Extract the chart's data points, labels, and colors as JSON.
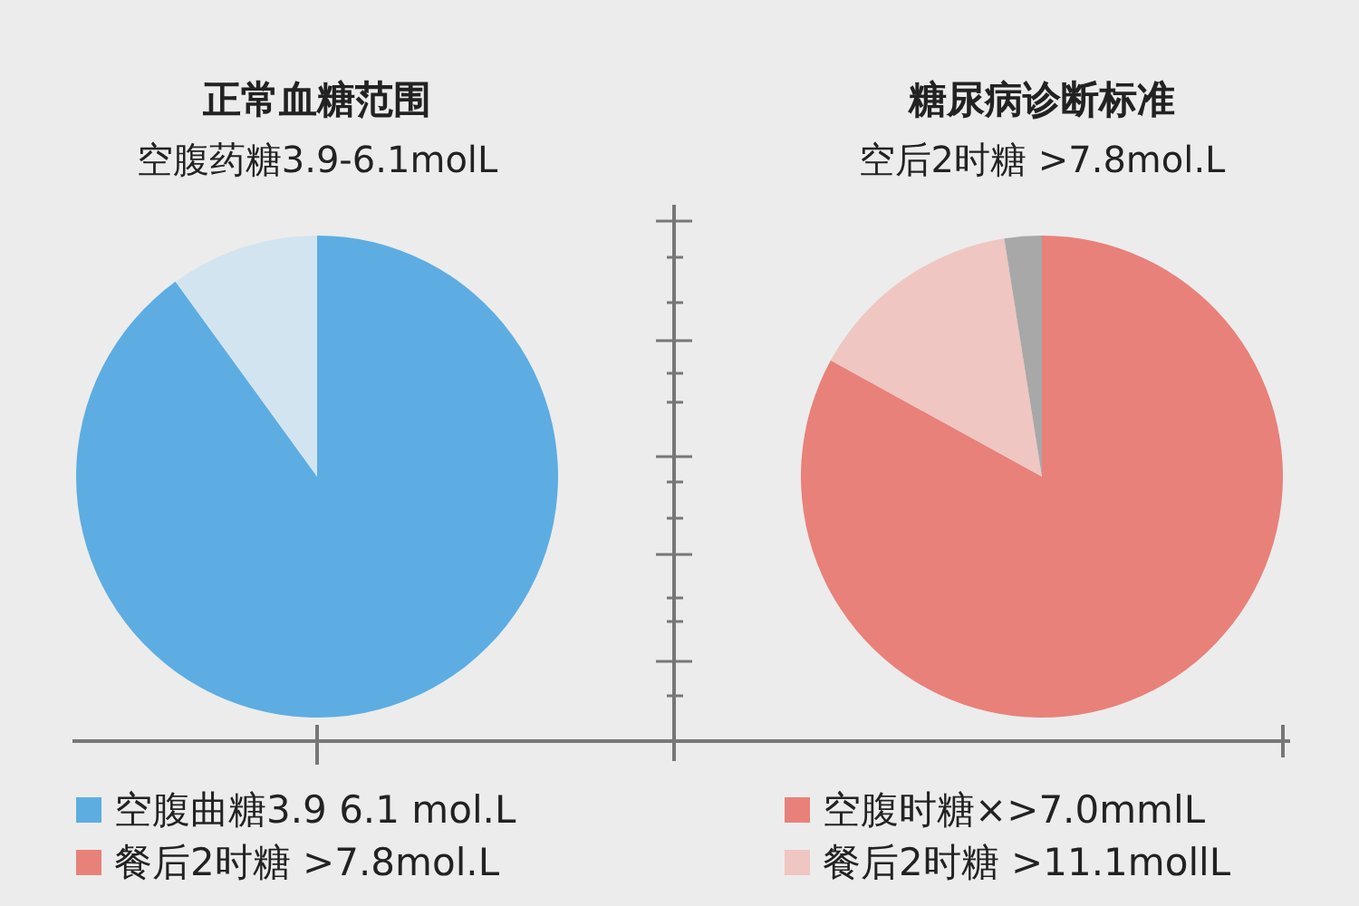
{
  "chart_data": [
    {
      "type": "pie",
      "title": "正常血糖范围",
      "subtitle": "空腹药糖3.9-6.1molL",
      "categories": [
        "空腹曲糖3.9 6.1 mol.L",
        null
      ],
      "values": [
        90,
        10
      ],
      "colors": [
        "#5dade2",
        "#d3e4f1"
      ],
      "legend": "bottom",
      "annotations": [
        "餐后2时糖 >7.8mol.L"
      ]
    },
    {
      "type": "pie",
      "title": "糖尿病诊断标准",
      "subtitle": "空后2时糖 >7.8mol.L",
      "categories": [
        "空腹时糖×>7.0mmlL",
        "餐后2时糖 >11.1mollL",
        null
      ],
      "values": [
        83,
        14.5,
        2.5
      ],
      "colors": [
        "#e8817a",
        "#efc6c2",
        "#a8a8a8"
      ],
      "legend": "bottom"
    }
  ]
}
